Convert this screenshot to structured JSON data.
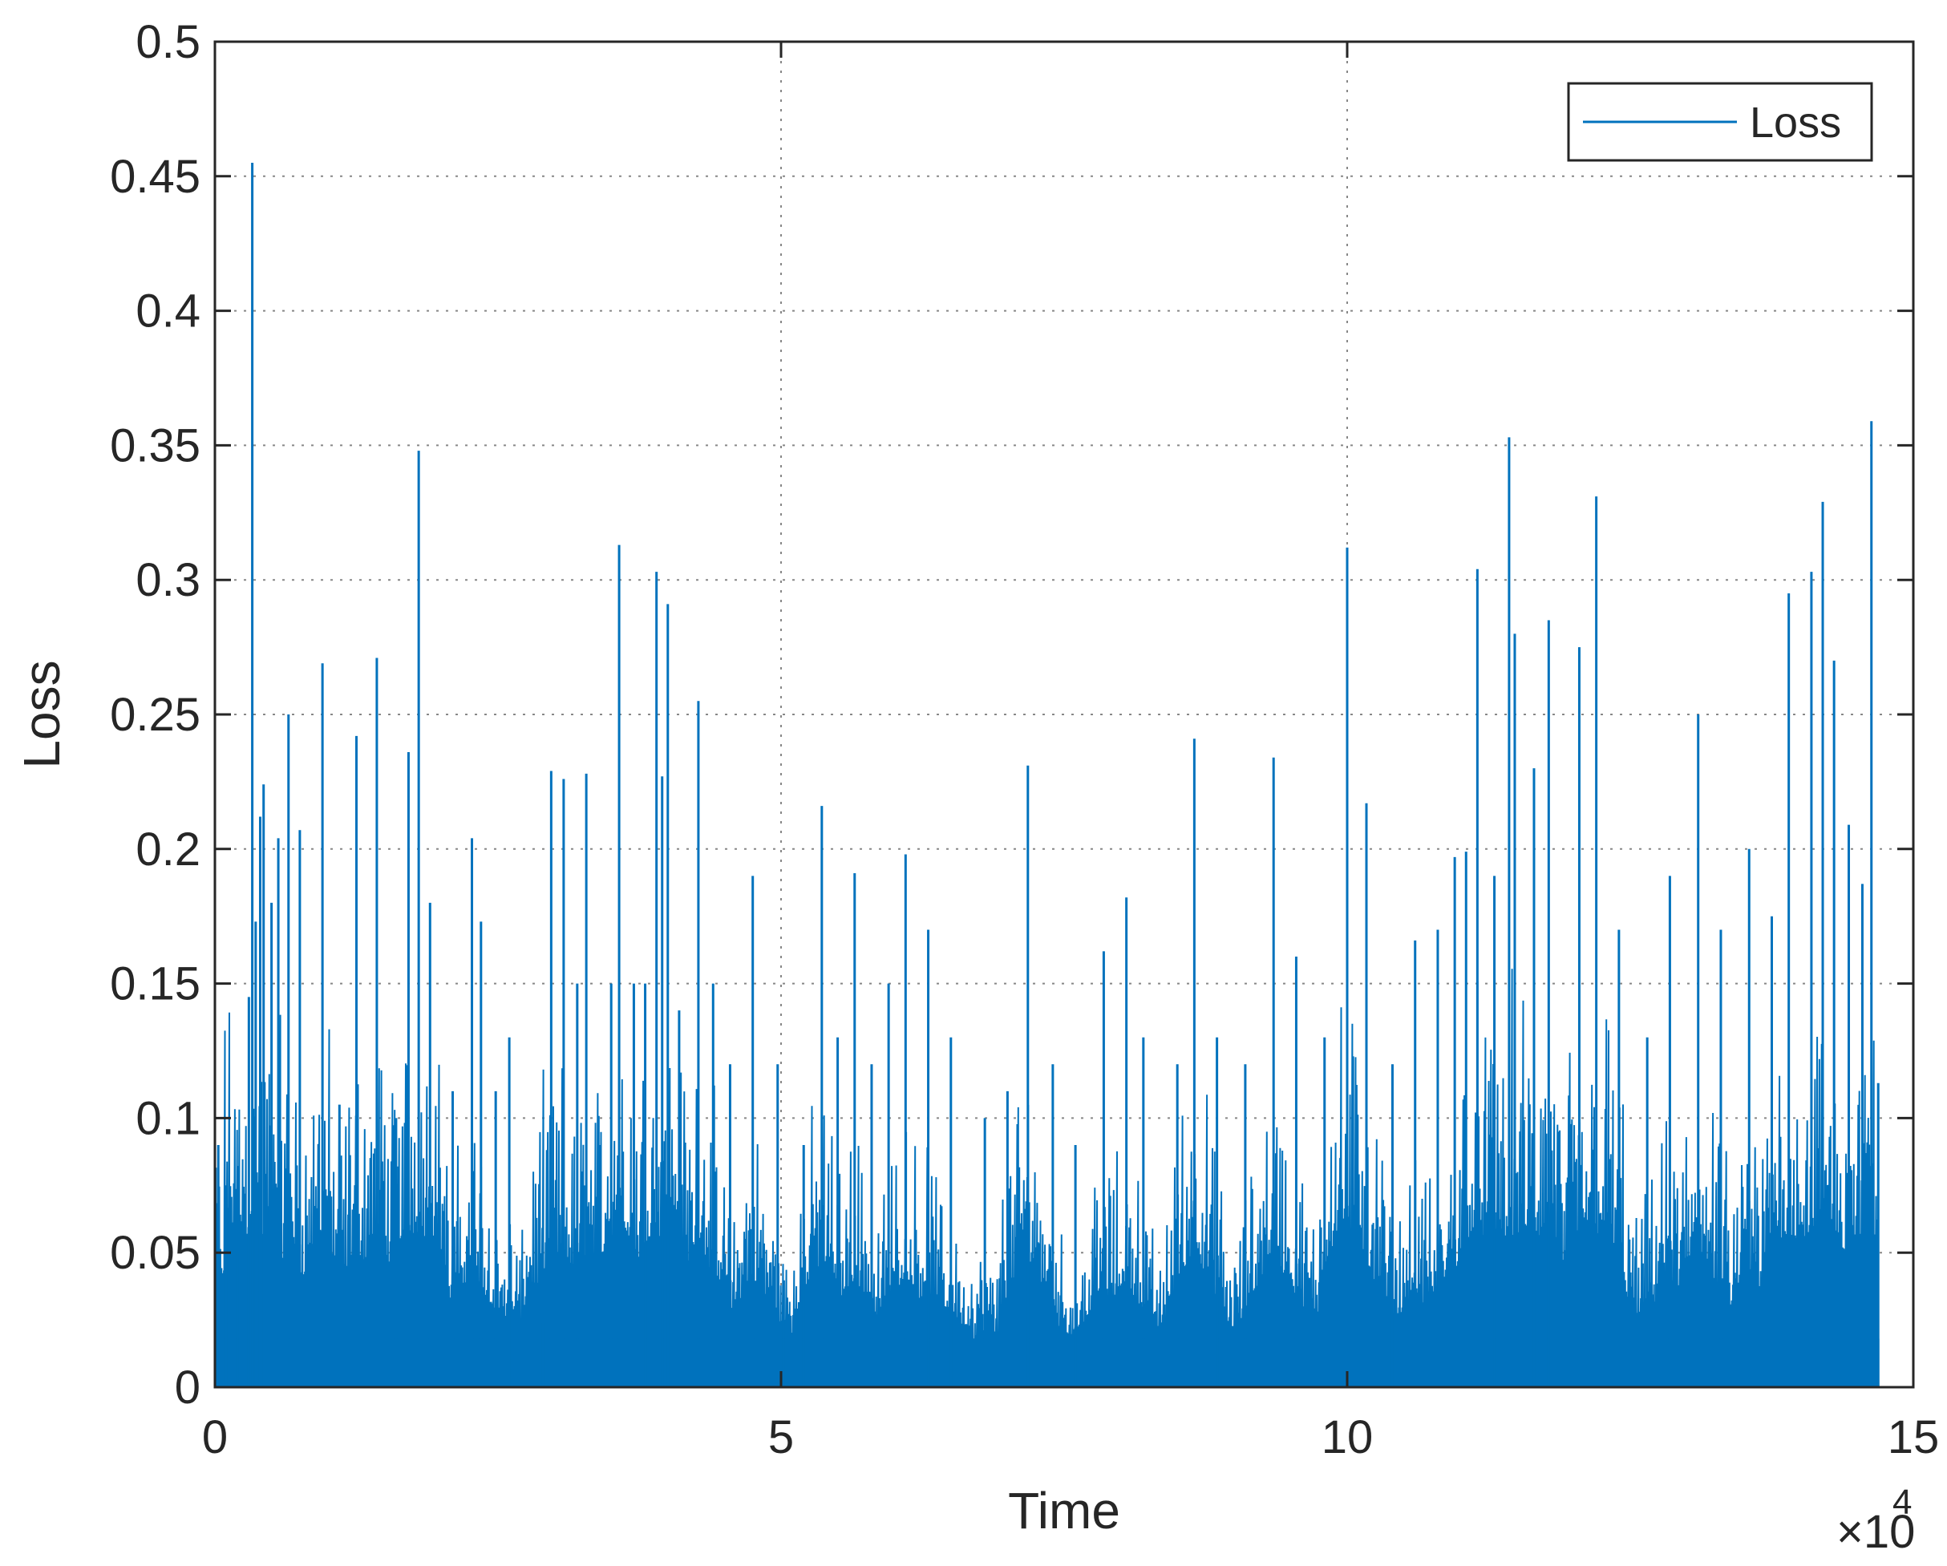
{
  "chart_data": {
    "type": "line",
    "xlabel": "Time",
    "ylabel": "Loss",
    "x_exponent_label": "×10",
    "x_exponent_power": "4",
    "x_multiplier": 10000,
    "xlim": [
      0,
      150000
    ],
    "ylim": [
      0,
      0.5
    ],
    "x_ticks": [
      0,
      5,
      10,
      15
    ],
    "x_tick_labels": [
      "0",
      "5",
      "10",
      "15"
    ],
    "y_ticks": [
      0,
      0.05,
      0.1,
      0.15,
      0.2,
      0.25,
      0.3,
      0.35,
      0.4,
      0.45,
      0.5
    ],
    "y_tick_labels": [
      "0",
      "0.05",
      "0.1",
      "0.15",
      "0.2",
      "0.25",
      "0.3",
      "0.35",
      "0.4",
      "0.45",
      "0.5"
    ],
    "grid": true,
    "legend_position": "top-right",
    "series": [
      {
        "name": "Loss",
        "color": "#0072BD",
        "x_end": 147000,
        "peaks": [
          [
            0,
            0.182
          ],
          [
            300,
            0.09
          ],
          [
            1000,
            0.075
          ],
          [
            2000,
            0.05
          ],
          [
            2900,
            0.052
          ],
          [
            3000,
            0.145
          ],
          [
            3300,
            0.455
          ],
          [
            3600,
            0.173
          ],
          [
            4000,
            0.212
          ],
          [
            4300,
            0.224
          ],
          [
            5000,
            0.18
          ],
          [
            5600,
            0.204
          ],
          [
            6500,
            0.25
          ],
          [
            7500,
            0.207
          ],
          [
            9500,
            0.269
          ],
          [
            11000,
            0.105
          ],
          [
            12500,
            0.242
          ],
          [
            14300,
            0.271
          ],
          [
            16000,
            0.1
          ],
          [
            17100,
            0.236
          ],
          [
            18000,
            0.348
          ],
          [
            19000,
            0.18
          ],
          [
            21000,
            0.11
          ],
          [
            22700,
            0.204
          ],
          [
            23500,
            0.173
          ],
          [
            24800,
            0.11
          ],
          [
            26000,
            0.13
          ],
          [
            29000,
            0.024
          ],
          [
            29700,
            0.229
          ],
          [
            30800,
            0.226
          ],
          [
            32000,
            0.15
          ],
          [
            32800,
            0.228
          ],
          [
            34000,
            0.09
          ],
          [
            35000,
            0.15
          ],
          [
            35700,
            0.313
          ],
          [
            37000,
            0.15
          ],
          [
            38000,
            0.15
          ],
          [
            39000,
            0.303
          ],
          [
            39500,
            0.227
          ],
          [
            40000,
            0.291
          ],
          [
            41000,
            0.14
          ],
          [
            42700,
            0.255
          ],
          [
            44000,
            0.15
          ],
          [
            45500,
            0.12
          ],
          [
            47500,
            0.19
          ],
          [
            49700,
            0.12
          ],
          [
            50200,
            0.03
          ],
          [
            52000,
            0.09
          ],
          [
            53600,
            0.216
          ],
          [
            55000,
            0.13
          ],
          [
            56500,
            0.191
          ],
          [
            58000,
            0.12
          ],
          [
            59500,
            0.15
          ],
          [
            61000,
            0.198
          ],
          [
            63000,
            0.17
          ],
          [
            65000,
            0.13
          ],
          [
            68000,
            0.1
          ],
          [
            70000,
            0.11
          ],
          [
            71800,
            0.231
          ],
          [
            74000,
            0.12
          ],
          [
            76000,
            0.09
          ],
          [
            78500,
            0.162
          ],
          [
            80500,
            0.182
          ],
          [
            82000,
            0.13
          ],
          [
            85000,
            0.12
          ],
          [
            86500,
            0.241
          ],
          [
            88500,
            0.13
          ],
          [
            91000,
            0.12
          ],
          [
            93500,
            0.234
          ],
          [
            95500,
            0.16
          ],
          [
            98000,
            0.13
          ],
          [
            100000,
            0.312
          ],
          [
            101700,
            0.217
          ],
          [
            104000,
            0.12
          ],
          [
            106000,
            0.166
          ],
          [
            108000,
            0.17
          ],
          [
            109500,
            0.197
          ],
          [
            110500,
            0.199
          ],
          [
            111500,
            0.304
          ],
          [
            113000,
            0.19
          ],
          [
            114300,
            0.353
          ],
          [
            114800,
            0.28
          ],
          [
            116500,
            0.23
          ],
          [
            117800,
            0.285
          ],
          [
            120500,
            0.275
          ],
          [
            122000,
            0.331
          ],
          [
            124000,
            0.17
          ],
          [
            126500,
            0.13
          ],
          [
            128500,
            0.19
          ],
          [
            131000,
            0.25
          ],
          [
            133000,
            0.17
          ],
          [
            135500,
            0.2
          ],
          [
            137500,
            0.175
          ],
          [
            139000,
            0.295
          ],
          [
            141000,
            0.303
          ],
          [
            142000,
            0.329
          ],
          [
            143000,
            0.27
          ],
          [
            144300,
            0.209
          ],
          [
            145500,
            0.187
          ],
          [
            146300,
            0.359
          ],
          [
            146900,
            0.113
          ]
        ]
      }
    ]
  }
}
